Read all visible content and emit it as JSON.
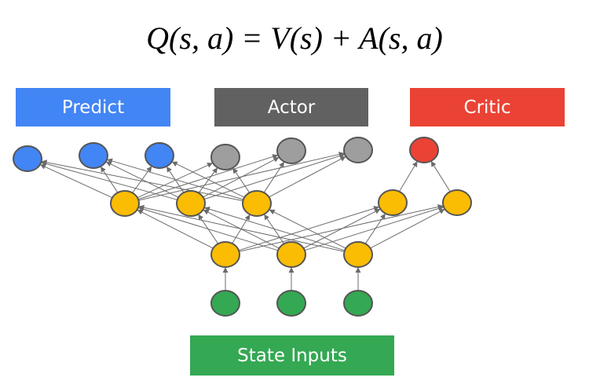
{
  "formula": "Q(s, a) = V(s) + A(s, a)",
  "labels": {
    "predict": "Predict",
    "actor": "Actor",
    "critic": "Critic",
    "state_inputs": "State Inputs"
  },
  "colors": {
    "predict": "#4285f4",
    "actor": "#616161",
    "critic": "#ea4335",
    "state_inputs": "#34a853",
    "node_blue": "#4285f4",
    "node_gray": "#9e9e9e",
    "node_red": "#ea4335",
    "node_yellow": "#fbbc04",
    "node_green": "#34a853",
    "edge": "#6b6b6b"
  }
}
